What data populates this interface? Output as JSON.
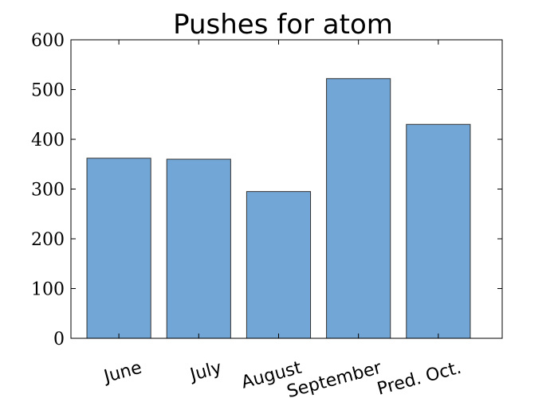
{
  "chart_data": {
    "type": "bar",
    "title": "Pushes for atom",
    "categories": [
      "June",
      "July",
      "August",
      "September",
      "Pred. Oct."
    ],
    "values": [
      362,
      360,
      295,
      522,
      430
    ],
    "xlabel": "",
    "ylabel": "",
    "ylim": [
      0,
      600
    ],
    "yticks": [
      "0",
      "100",
      "200",
      "300",
      "400",
      "500",
      "600"
    ],
    "grid": false,
    "bar_color": "#72a6d6",
    "bar_edge_color": "#333333"
  }
}
